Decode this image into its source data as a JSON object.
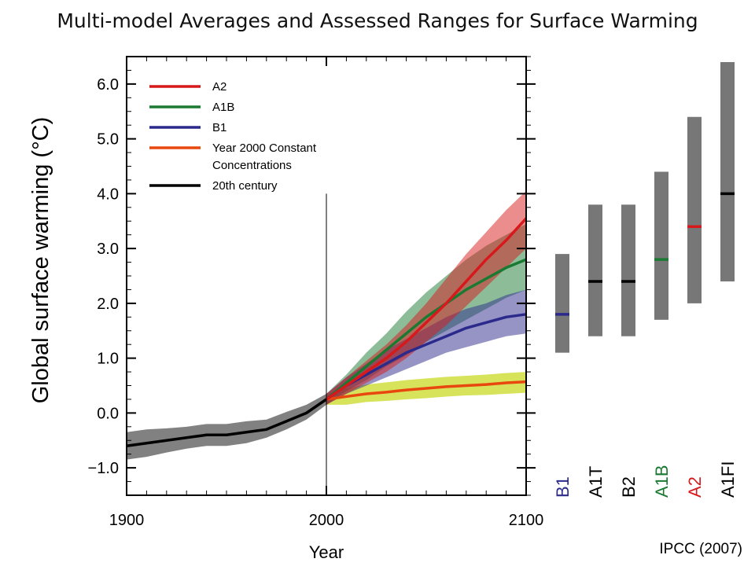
{
  "title": "Multi-model Averages and Assessed Ranges for Surface Warming",
  "credit": "IPCC (2007)",
  "colors": {
    "A2": "#d7191c",
    "A1B": "#1a7a32",
    "B1": "#2b2a8c",
    "Constant": "#e8470e",
    "20th": "#000000",
    "bar": "#777777"
  },
  "chart_data": [
    {
      "type": "line",
      "xlabel": "Year",
      "ylabel": "Global surface warming (°C)",
      "xlim": [
        1900,
        2100
      ],
      "ylim": [
        -1.5,
        6.5
      ],
      "xticks": [
        1900,
        2000,
        2100
      ],
      "xtick_labels": [
        "1900",
        "2000",
        "2100"
      ],
      "yticks": [
        -1.0,
        0.0,
        1.0,
        2.0,
        3.0,
        4.0,
        5.0,
        6.0
      ],
      "ytick_labels": [
        "−1.0",
        "0.0",
        "1.0",
        "2.0",
        "3.0",
        "4.0",
        "5.0",
        "6.0"
      ],
      "grid": false,
      "legend_position": "top-left",
      "series": [
        {
          "name": "A2",
          "color_key": "A2",
          "x": [
            2000,
            2010,
            2020,
            2030,
            2040,
            2050,
            2060,
            2070,
            2080,
            2090,
            2100
          ],
          "y": [
            0.25,
            0.5,
            0.75,
            1.0,
            1.3,
            1.65,
            2.0,
            2.4,
            2.8,
            3.15,
            3.55
          ],
          "lower": [
            0.15,
            0.35,
            0.55,
            0.75,
            1.0,
            1.3,
            1.6,
            1.95,
            2.3,
            2.65,
            3.0
          ],
          "upper": [
            0.35,
            0.65,
            0.95,
            1.25,
            1.6,
            2.0,
            2.45,
            2.9,
            3.3,
            3.7,
            4.05
          ]
        },
        {
          "name": "A1B",
          "color_key": "A1B",
          "x": [
            2000,
            2010,
            2020,
            2030,
            2040,
            2050,
            2060,
            2070,
            2080,
            2090,
            2100
          ],
          "y": [
            0.25,
            0.55,
            0.85,
            1.15,
            1.45,
            1.75,
            2.0,
            2.25,
            2.45,
            2.65,
            2.8
          ],
          "lower": [
            0.15,
            0.4,
            0.6,
            0.85,
            1.05,
            1.3,
            1.5,
            1.7,
            1.9,
            2.1,
            2.25
          ],
          "upper": [
            0.35,
            0.7,
            1.1,
            1.45,
            1.85,
            2.2,
            2.5,
            2.8,
            3.05,
            3.25,
            3.45
          ]
        },
        {
          "name": "B1",
          "color_key": "B1",
          "x": [
            2000,
            2010,
            2020,
            2030,
            2040,
            2050,
            2060,
            2070,
            2080,
            2090,
            2100
          ],
          "y": [
            0.25,
            0.5,
            0.7,
            0.9,
            1.1,
            1.25,
            1.4,
            1.55,
            1.65,
            1.75,
            1.8
          ],
          "lower": [
            0.15,
            0.35,
            0.5,
            0.65,
            0.8,
            0.95,
            1.1,
            1.2,
            1.3,
            1.4,
            1.45
          ],
          "upper": [
            0.35,
            0.65,
            0.9,
            1.15,
            1.35,
            1.55,
            1.75,
            1.9,
            2.0,
            2.15,
            2.25
          ]
        },
        {
          "name": "Year 2000 Constant Concentrations",
          "color_key": "Constant",
          "x": [
            2000,
            2010,
            2020,
            2030,
            2040,
            2050,
            2060,
            2070,
            2080,
            2090,
            2100
          ],
          "y": [
            0.25,
            0.3,
            0.35,
            0.38,
            0.42,
            0.45,
            0.48,
            0.5,
            0.52,
            0.55,
            0.57
          ],
          "lower": [
            0.15,
            0.15,
            0.2,
            0.22,
            0.25,
            0.27,
            0.3,
            0.32,
            0.33,
            0.35,
            0.37
          ],
          "upper": [
            0.35,
            0.45,
            0.52,
            0.56,
            0.6,
            0.63,
            0.66,
            0.68,
            0.7,
            0.73,
            0.75
          ]
        },
        {
          "name": "20th century",
          "color_key": "20th",
          "x": [
            1900,
            1910,
            1920,
            1930,
            1940,
            1950,
            1960,
            1970,
            1980,
            1990,
            2000
          ],
          "y": [
            -0.6,
            -0.55,
            -0.5,
            -0.45,
            -0.4,
            -0.4,
            -0.35,
            -0.3,
            -0.15,
            0.0,
            0.25
          ],
          "lower": [
            -0.85,
            -0.8,
            -0.72,
            -0.65,
            -0.6,
            -0.6,
            -0.55,
            -0.45,
            -0.3,
            -0.12,
            0.15
          ],
          "upper": [
            -0.35,
            -0.3,
            -0.28,
            -0.25,
            -0.2,
            -0.2,
            -0.15,
            -0.12,
            0.02,
            0.15,
            0.35
          ]
        }
      ],
      "legend": [
        {
          "label": "A2",
          "color_key": "A2"
        },
        {
          "label": "A1B",
          "color_key": "A1B"
        },
        {
          "label": "B1",
          "color_key": "B1"
        },
        {
          "label": "Year 2000 Constant",
          "label2": "Concentrations",
          "color_key": "Constant"
        },
        {
          "label": "20th century",
          "color_key": "20th"
        }
      ]
    },
    {
      "type": "bar",
      "orientation": "range",
      "ylim": [
        -1.5,
        6.5
      ],
      "categories": [
        "B1",
        "A1T",
        "B2",
        "A1B",
        "A2",
        "A1FI"
      ],
      "label_color_keys": [
        "B1",
        "20th",
        "20th",
        "A1B",
        "A2",
        "20th"
      ],
      "marker_color_keys": [
        "B1",
        "20th",
        "20th",
        "A1B",
        "A2",
        "20th"
      ],
      "low": [
        1.1,
        1.4,
        1.4,
        1.7,
        2.0,
        2.4
      ],
      "high": [
        2.9,
        3.8,
        3.8,
        4.4,
        5.4,
        6.4
      ],
      "best": [
        1.8,
        2.4,
        2.4,
        2.8,
        3.4,
        4.0
      ]
    }
  ]
}
